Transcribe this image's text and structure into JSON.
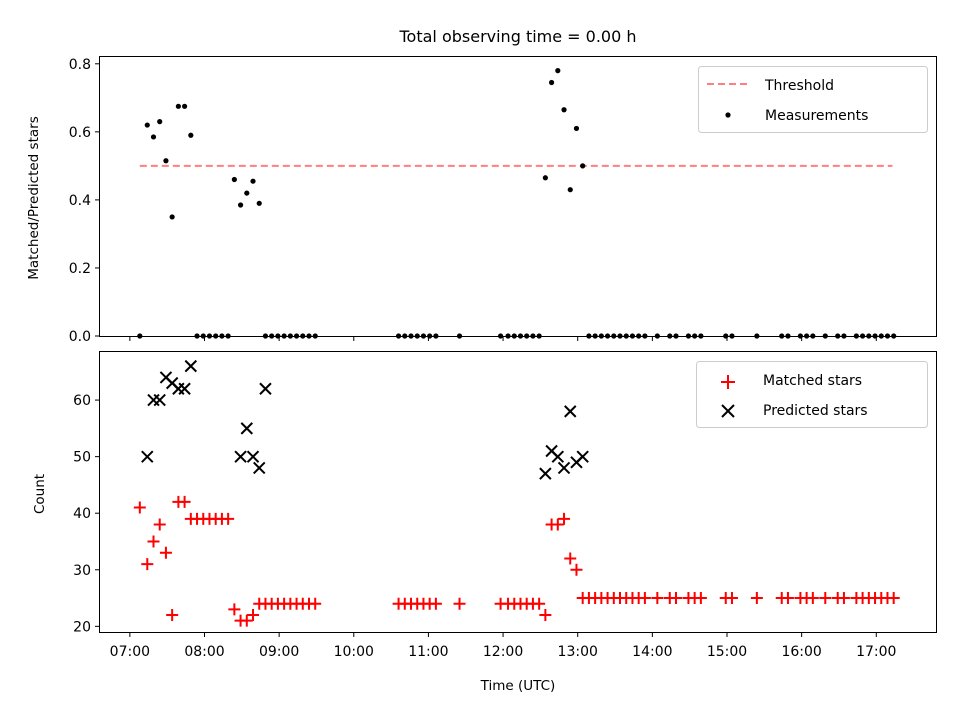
{
  "chart_data": [
    {
      "type": "scatter",
      "title": "Total observing time = 0.00 h",
      "xlabel": "",
      "ylabel": "Matched/Predicted stars",
      "xlim": [
        "06:36",
        "17:48"
      ],
      "ylim": [
        0,
        0.82
      ],
      "x_ticks": [
        "07:00",
        "08:00",
        "09:00",
        "10:00",
        "11:00",
        "12:00",
        "13:00",
        "14:00",
        "15:00",
        "16:00",
        "17:00"
      ],
      "y_ticks": [
        "0.0",
        "0.2",
        "0.4",
        "0.6",
        "0.8"
      ],
      "legend_position": "top-right",
      "colors": {
        "threshold": "#ff7f7f",
        "measurements": "#000000"
      },
      "threshold": {
        "name": "Threshold",
        "y": 0.5,
        "x": [
          "07:08",
          "17:13"
        ]
      },
      "series": [
        {
          "name": "Measurements",
          "marker": "dot",
          "x": [
            "07:08",
            "07:14",
            "07:19",
            "07:24",
            "07:29",
            "07:34",
            "07:39",
            "07:44",
            "07:49",
            "07:54",
            "07:59",
            "08:04",
            "08:09",
            "08:14",
            "08:19",
            "08:24",
            "08:29",
            "08:34",
            "08:39",
            "08:44",
            "08:49",
            "08:54",
            "08:59",
            "09:04",
            "09:09",
            "09:14",
            "09:19",
            "09:24",
            "09:29",
            "10:36",
            "10:41",
            "10:46",
            "10:51",
            "10:56",
            "11:01",
            "11:06",
            "11:25",
            "11:58",
            "12:04",
            "12:09",
            "12:14",
            "12:19",
            "12:24",
            "12:29",
            "12:34",
            "12:39",
            "12:44",
            "12:49",
            "12:54",
            "12:59",
            "13:04",
            "13:09",
            "13:14",
            "13:19",
            "13:24",
            "13:29",
            "13:34",
            "13:39",
            "13:44",
            "13:49",
            "13:54",
            "14:04",
            "14:14",
            "14:19",
            "14:29",
            "14:34",
            "14:39",
            "14:59",
            "15:04",
            "15:24",
            "15:44",
            "15:49",
            "15:59",
            "16:04",
            "16:09",
            "16:19",
            "16:29",
            "16:34",
            "16:44",
            "16:49",
            "16:54",
            "16:59",
            "17:04",
            "17:09",
            "17:14"
          ],
          "y": [
            0.0,
            0.62,
            0.585,
            0.63,
            0.515,
            0.35,
            0.675,
            0.675,
            0.59,
            0.0,
            0.0,
            0.0,
            0.0,
            0.0,
            0.0,
            0.46,
            0.385,
            0.42,
            0.455,
            0.39,
            0.0,
            0.0,
            0.0,
            0.0,
            0.0,
            0.0,
            0.0,
            0.0,
            0.0,
            0.0,
            0.0,
            0.0,
            0.0,
            0.0,
            0.0,
            0.0,
            0.0,
            0.0,
            0.0,
            0.0,
            0.0,
            0.0,
            0.0,
            0.0,
            0.465,
            0.745,
            0.78,
            0.665,
            0.43,
            0.61,
            0.5,
            0.0,
            0.0,
            0.0,
            0.0,
            0.0,
            0.0,
            0.0,
            0.0,
            0.0,
            0.0,
            0.0,
            0.0,
            0.0,
            0.0,
            0.0,
            0.0,
            0.0,
            0.0,
            0.0,
            0.0,
            0.0,
            0.0,
            0.0,
            0.0,
            0.0,
            0.0,
            0.0,
            0.0,
            0.0,
            0.0,
            0.0,
            0.0,
            0.0,
            0.0
          ]
        }
      ]
    },
    {
      "type": "scatter",
      "title": "",
      "xlabel": "Time (UTC)",
      "ylabel": "Count",
      "xlim": [
        "06:36",
        "17:48"
      ],
      "ylim": [
        19,
        68.5
      ],
      "x_ticks": [
        "07:00",
        "08:00",
        "09:00",
        "10:00",
        "11:00",
        "12:00",
        "13:00",
        "14:00",
        "15:00",
        "16:00",
        "17:00"
      ],
      "y_ticks": [
        "20",
        "30",
        "40",
        "50",
        "60"
      ],
      "legend_position": "top-right",
      "colors": {
        "matched": "#ff0000",
        "predicted": "#000000"
      },
      "series": [
        {
          "name": "Matched stars",
          "marker": "plus",
          "x": [
            "07:08",
            "07:14",
            "07:19",
            "07:24",
            "07:29",
            "07:34",
            "07:39",
            "07:44",
            "07:49",
            "07:54",
            "07:59",
            "08:04",
            "08:09",
            "08:14",
            "08:19",
            "08:24",
            "08:29",
            "08:34",
            "08:39",
            "08:44",
            "08:49",
            "08:54",
            "08:59",
            "09:04",
            "09:09",
            "09:14",
            "09:19",
            "09:24",
            "09:29",
            "10:36",
            "10:41",
            "10:46",
            "10:51",
            "10:56",
            "11:01",
            "11:06",
            "11:25",
            "11:58",
            "12:04",
            "12:09",
            "12:14",
            "12:19",
            "12:24",
            "12:29",
            "12:34",
            "12:39",
            "12:44",
            "12:49",
            "12:54",
            "12:59",
            "13:04",
            "13:09",
            "13:14",
            "13:19",
            "13:24",
            "13:29",
            "13:34",
            "13:39",
            "13:44",
            "13:49",
            "13:54",
            "14:04",
            "14:14",
            "14:19",
            "14:29",
            "14:34",
            "14:39",
            "14:59",
            "15:04",
            "15:24",
            "15:44",
            "15:49",
            "15:59",
            "16:04",
            "16:09",
            "16:19",
            "16:29",
            "16:34",
            "16:44",
            "16:49",
            "16:54",
            "16:59",
            "17:04",
            "17:09",
            "17:14"
          ],
          "y": [
            41,
            31,
            35,
            38,
            33,
            22,
            42,
            42,
            39,
            39,
            39,
            39,
            39,
            39,
            39,
            23,
            21,
            21,
            22,
            24,
            24,
            24,
            24,
            24,
            24,
            24,
            24,
            24,
            24,
            24,
            24,
            24,
            24,
            24,
            24,
            24,
            24,
            24,
            24,
            24,
            24,
            24,
            24,
            24,
            22,
            38,
            38,
            39,
            32,
            30,
            25,
            25,
            25,
            25,
            25,
            25,
            25,
            25,
            25,
            25,
            25,
            25,
            25,
            25,
            25,
            25,
            25,
            25,
            25,
            25,
            25,
            25,
            25,
            25,
            25,
            25,
            25,
            25,
            25,
            25,
            25,
            25,
            25,
            25,
            25
          ]
        },
        {
          "name": "Predicted stars",
          "marker": "x",
          "x": [
            "07:14",
            "07:19",
            "07:24",
            "07:29",
            "07:34",
            "07:39",
            "07:44",
            "07:49",
            "08:29",
            "08:34",
            "08:39",
            "08:44",
            "08:49",
            "12:34",
            "12:39",
            "12:44",
            "12:49",
            "12:54",
            "12:59",
            "13:04"
          ],
          "y": [
            50,
            60,
            60,
            64,
            63,
            62,
            62,
            66,
            50,
            55,
            50,
            48,
            62,
            47,
            51,
            50,
            48,
            58,
            49,
            50
          ]
        }
      ]
    }
  ]
}
